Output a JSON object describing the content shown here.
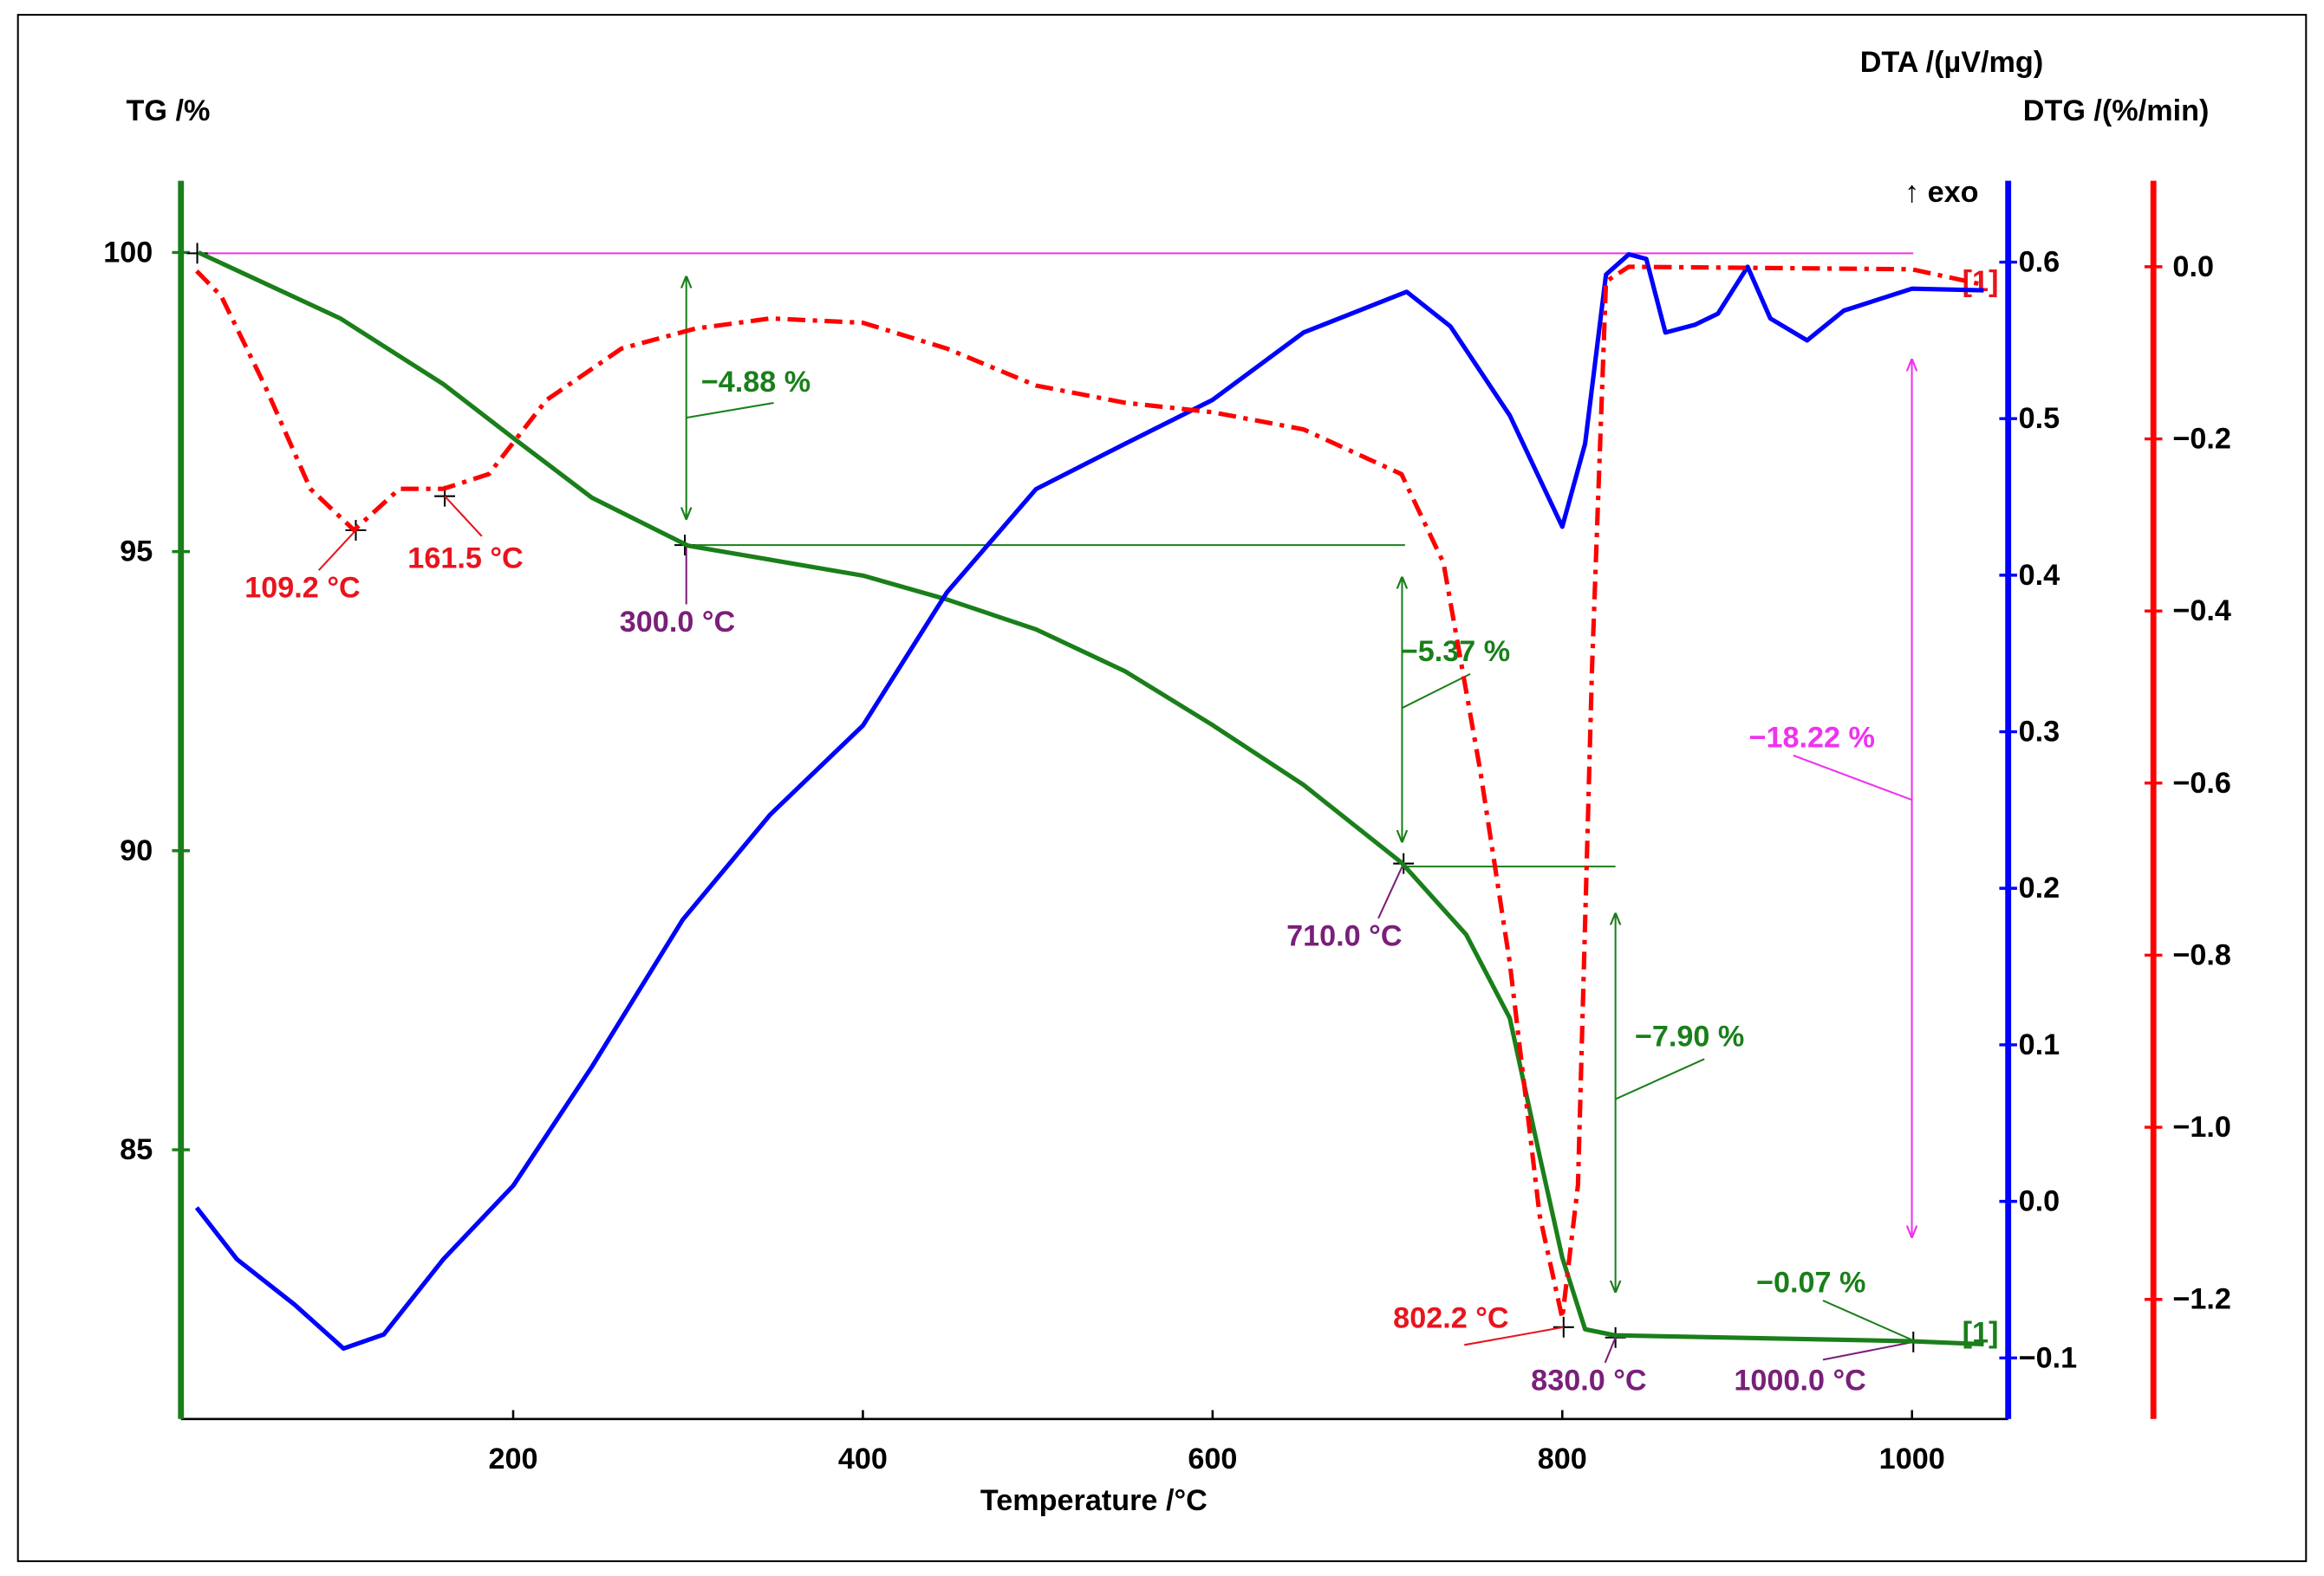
{
  "chart_data": {
    "type": "line",
    "x_label": "Temperature /°C",
    "y_label": "TG /%",
    "y2_label": "DTA /(µV/mg)",
    "y3_label": "DTG /(%/min)",
    "exo_label": "↑ exo",
    "xlim": [
      10,
      1055
    ],
    "xticks": [
      200,
      400,
      600,
      800,
      1000
    ],
    "ylim": [
      80.5,
      101.2
    ],
    "yticks": [
      85,
      90,
      95,
      100
    ],
    "y2lim": [
      -0.139,
      0.652
    ],
    "y2ticks": [
      {
        "value": -0.1,
        "label": "−0.1"
      },
      {
        "value": 0,
        "label": "0.0"
      },
      0.1,
      0.2,
      0.3,
      0.4,
      0.5,
      0.6
    ],
    "y3lim": [
      -1.339,
      0.1
    ],
    "y3ticks": [
      {
        "value": -1.2,
        "label": "−1.2"
      },
      {
        "value": -1.0,
        "label": "−1.0"
      },
      {
        "value": -0.8,
        "label": "−0.8"
      },
      {
        "value": -0.6,
        "label": "−0.6"
      },
      {
        "value": -0.4,
        "label": "−0.4"
      },
      {
        "value": -0.2,
        "label": "−0.2"
      },
      {
        "value": 0,
        "label": "0.0"
      }
    ],
    "series": [
      {
        "color": "#1a7f1a",
        "axis": "y",
        "style": "solid",
        "x": [
          20,
          101,
          160,
          200,
          245,
          300,
          400,
          448,
          499,
          550,
          600,
          652,
          708,
          745,
          770,
          787,
          800,
          813,
          830,
          1000,
          1041
        ],
        "values": [
          100,
          98.9,
          97.8,
          96.9,
          95.9,
          95.1,
          94.6,
          94.2,
          93.7,
          93.0,
          92.1,
          91.1,
          89.8,
          88.6,
          87.2,
          84.9,
          83.2,
          82.0,
          81.9,
          81.8,
          81.75
        ]
      },
      {
        "color": "#0000ff",
        "axis": "y2",
        "style": "solid",
        "x": [
          19,
          42,
          75,
          103,
          126,
          160,
          200,
          245,
          297,
          347,
          400,
          448,
          499,
          550,
          600,
          652,
          711,
          736,
          770,
          800,
          813,
          825,
          838,
          848,
          859,
          876,
          889,
          906,
          919,
          940,
          961,
          1000,
          1041
        ],
        "values": [
          -0.004,
          -0.037,
          -0.066,
          -0.094,
          -0.085,
          -0.037,
          0.01,
          0.086,
          0.18,
          0.247,
          0.304,
          0.389,
          0.455,
          0.484,
          0.512,
          0.555,
          0.581,
          0.559,
          0.502,
          0.431,
          0.484,
          0.592,
          0.605,
          0.602,
          0.555,
          0.56,
          0.567,
          0.597,
          0.564,
          0.55,
          0.569,
          0.583,
          0.582
        ]
      },
      {
        "color": "#ff0000",
        "axis": "y3",
        "style": "dashdot",
        "x": [
          19,
          33,
          58,
          84,
          109,
          135,
          160,
          186,
          219,
          262,
          304,
          347,
          400,
          448,
          499,
          550,
          600,
          652,
          708,
          732,
          753,
          770,
          787,
          800,
          809,
          817,
          825,
          838,
          1000,
          1041
        ],
        "values": [
          -0.005,
          -0.034,
          -0.138,
          -0.258,
          -0.306,
          -0.258,
          -0.258,
          -0.241,
          -0.155,
          -0.095,
          -0.072,
          -0.06,
          -0.065,
          -0.095,
          -0.138,
          -0.158,
          -0.169,
          -0.189,
          -0.241,
          -0.344,
          -0.585,
          -0.809,
          -1.102,
          -1.222,
          -1.067,
          -0.465,
          -0.017,
          0,
          -0.003,
          -0.021
        ]
      }
    ],
    "annotations": [
      {
        "text": "109.2 °C",
        "color": "#e8141e"
      },
      {
        "text": "161.5 °C",
        "color": "#e8141e"
      },
      {
        "text": "300.0 °C",
        "color": "#7a1f7a"
      },
      {
        "text": "710.0 °C",
        "color": "#7a1f7a"
      },
      {
        "text": "802.2 °C",
        "color": "#e8141e"
      },
      {
        "text": "830.0 °C",
        "color": "#7a1f7a"
      },
      {
        "text": "1000.0 °C",
        "color": "#7a1f7a"
      },
      {
        "text": "−4.88 %",
        "color": "#1a7f1a"
      },
      {
        "text": "−5.37 %",
        "color": "#1a7f1a"
      },
      {
        "text": "−7.90 %",
        "color": "#1a7f1a"
      },
      {
        "text": "−0.07 %",
        "color": "#1a7f1a"
      },
      {
        "text": "−18.22 %",
        "color": "#ee33ee"
      },
      {
        "text": "[1]",
        "color": "#1a7f1a"
      },
      {
        "text": "[1]",
        "color": "#e8141e"
      }
    ]
  }
}
